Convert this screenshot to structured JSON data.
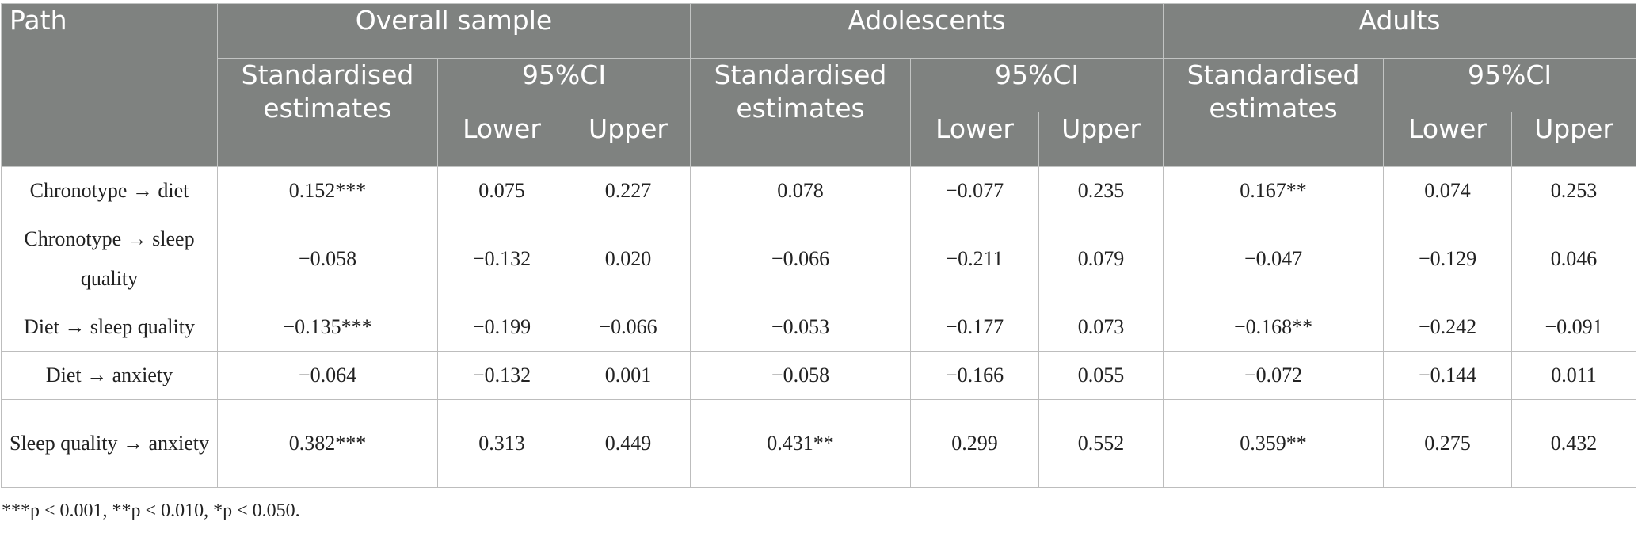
{
  "table": {
    "header": {
      "path": "Path",
      "groups": [
        "Overall sample",
        "Adolescents",
        "Adults"
      ],
      "estimates": "Standardised estimates",
      "ci": "95%CI",
      "lower": "Lower",
      "upper": "Upper"
    },
    "rows": [
      {
        "path": "Chronotype → diet",
        "cells": [
          "0.152***",
          "0.075",
          "0.227",
          "0.078",
          "−0.077",
          "0.235",
          "0.167**",
          "0.074",
          "0.253"
        ]
      },
      {
        "path": "Chronotype → sleep quality",
        "cells": [
          "−0.058",
          "−0.132",
          "0.020",
          "−0.066",
          "−0.211",
          "0.079",
          "−0.047",
          "−0.129",
          "0.046"
        ]
      },
      {
        "path": "Diet → sleep quality",
        "cells": [
          "−0.135***",
          "−0.199",
          "−0.066",
          "−0.053",
          "−0.177",
          "0.073",
          "−0.168**",
          "−0.242",
          "−0.091"
        ]
      },
      {
        "path": "Diet → anxiety",
        "cells": [
          "−0.064",
          "−0.132",
          "0.001",
          "−0.058",
          "−0.166",
          "0.055",
          "−0.072",
          "−0.144",
          "0.011"
        ]
      },
      {
        "path": "Sleep quality → anxiety",
        "cells": [
          "0.382***",
          "0.313",
          "0.449",
          "0.431**",
          "0.299",
          "0.552",
          "0.359**",
          "0.275",
          "0.432"
        ]
      }
    ]
  },
  "footnote": "***p < 0.001, **p < 0.010, *p < 0.050."
}
